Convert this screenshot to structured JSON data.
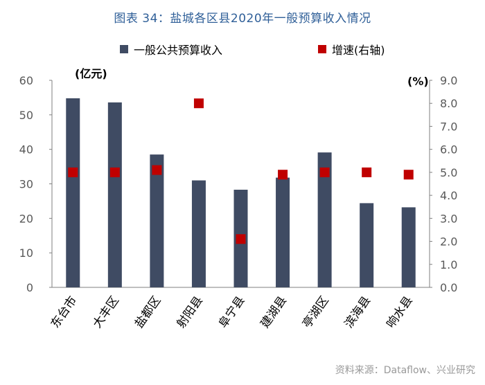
{
  "page": {
    "title": "图表 34：盐城各区县2020年一般预算收入情况",
    "source": "资料来源：Dataflow、兴业研究"
  },
  "colors": {
    "title": "#2f5f98",
    "bar": "#3f4b63",
    "marker": "#c00000",
    "axis_text": "#595959",
    "source": "#999999"
  },
  "chart_data": {
    "type": "bar",
    "categories": [
      "东台市",
      "大丰区",
      "盐都区",
      "射阳县",
      "阜宁县",
      "建湖县",
      "亭湖区",
      "滨海县",
      "响水县"
    ],
    "series": [
      {
        "name": "一般公共预算收入",
        "type": "bar",
        "axis": "left",
        "values": [
          54.8,
          53.6,
          38.5,
          31.0,
          28.3,
          31.8,
          39.1,
          24.4,
          23.2
        ]
      },
      {
        "name": "增速(右轴)",
        "type": "scatter",
        "axis": "right",
        "values": [
          5.0,
          5.0,
          5.1,
          8.0,
          2.1,
          4.9,
          5.0,
          5.0,
          4.9
        ]
      }
    ],
    "y_left": {
      "unit": "(亿元)",
      "ylim": [
        0,
        60
      ],
      "ticks": [
        "0",
        "10",
        "20",
        "30",
        "40",
        "50",
        "60"
      ]
    },
    "y_right": {
      "unit": "(%)",
      "ylim": [
        0,
        9
      ],
      "ticks": [
        "0.0",
        "1.0",
        "2.0",
        "3.0",
        "4.0",
        "5.0",
        "6.0",
        "7.0",
        "8.0",
        "9.0"
      ]
    },
    "grid": false,
    "legend_position": "top"
  }
}
